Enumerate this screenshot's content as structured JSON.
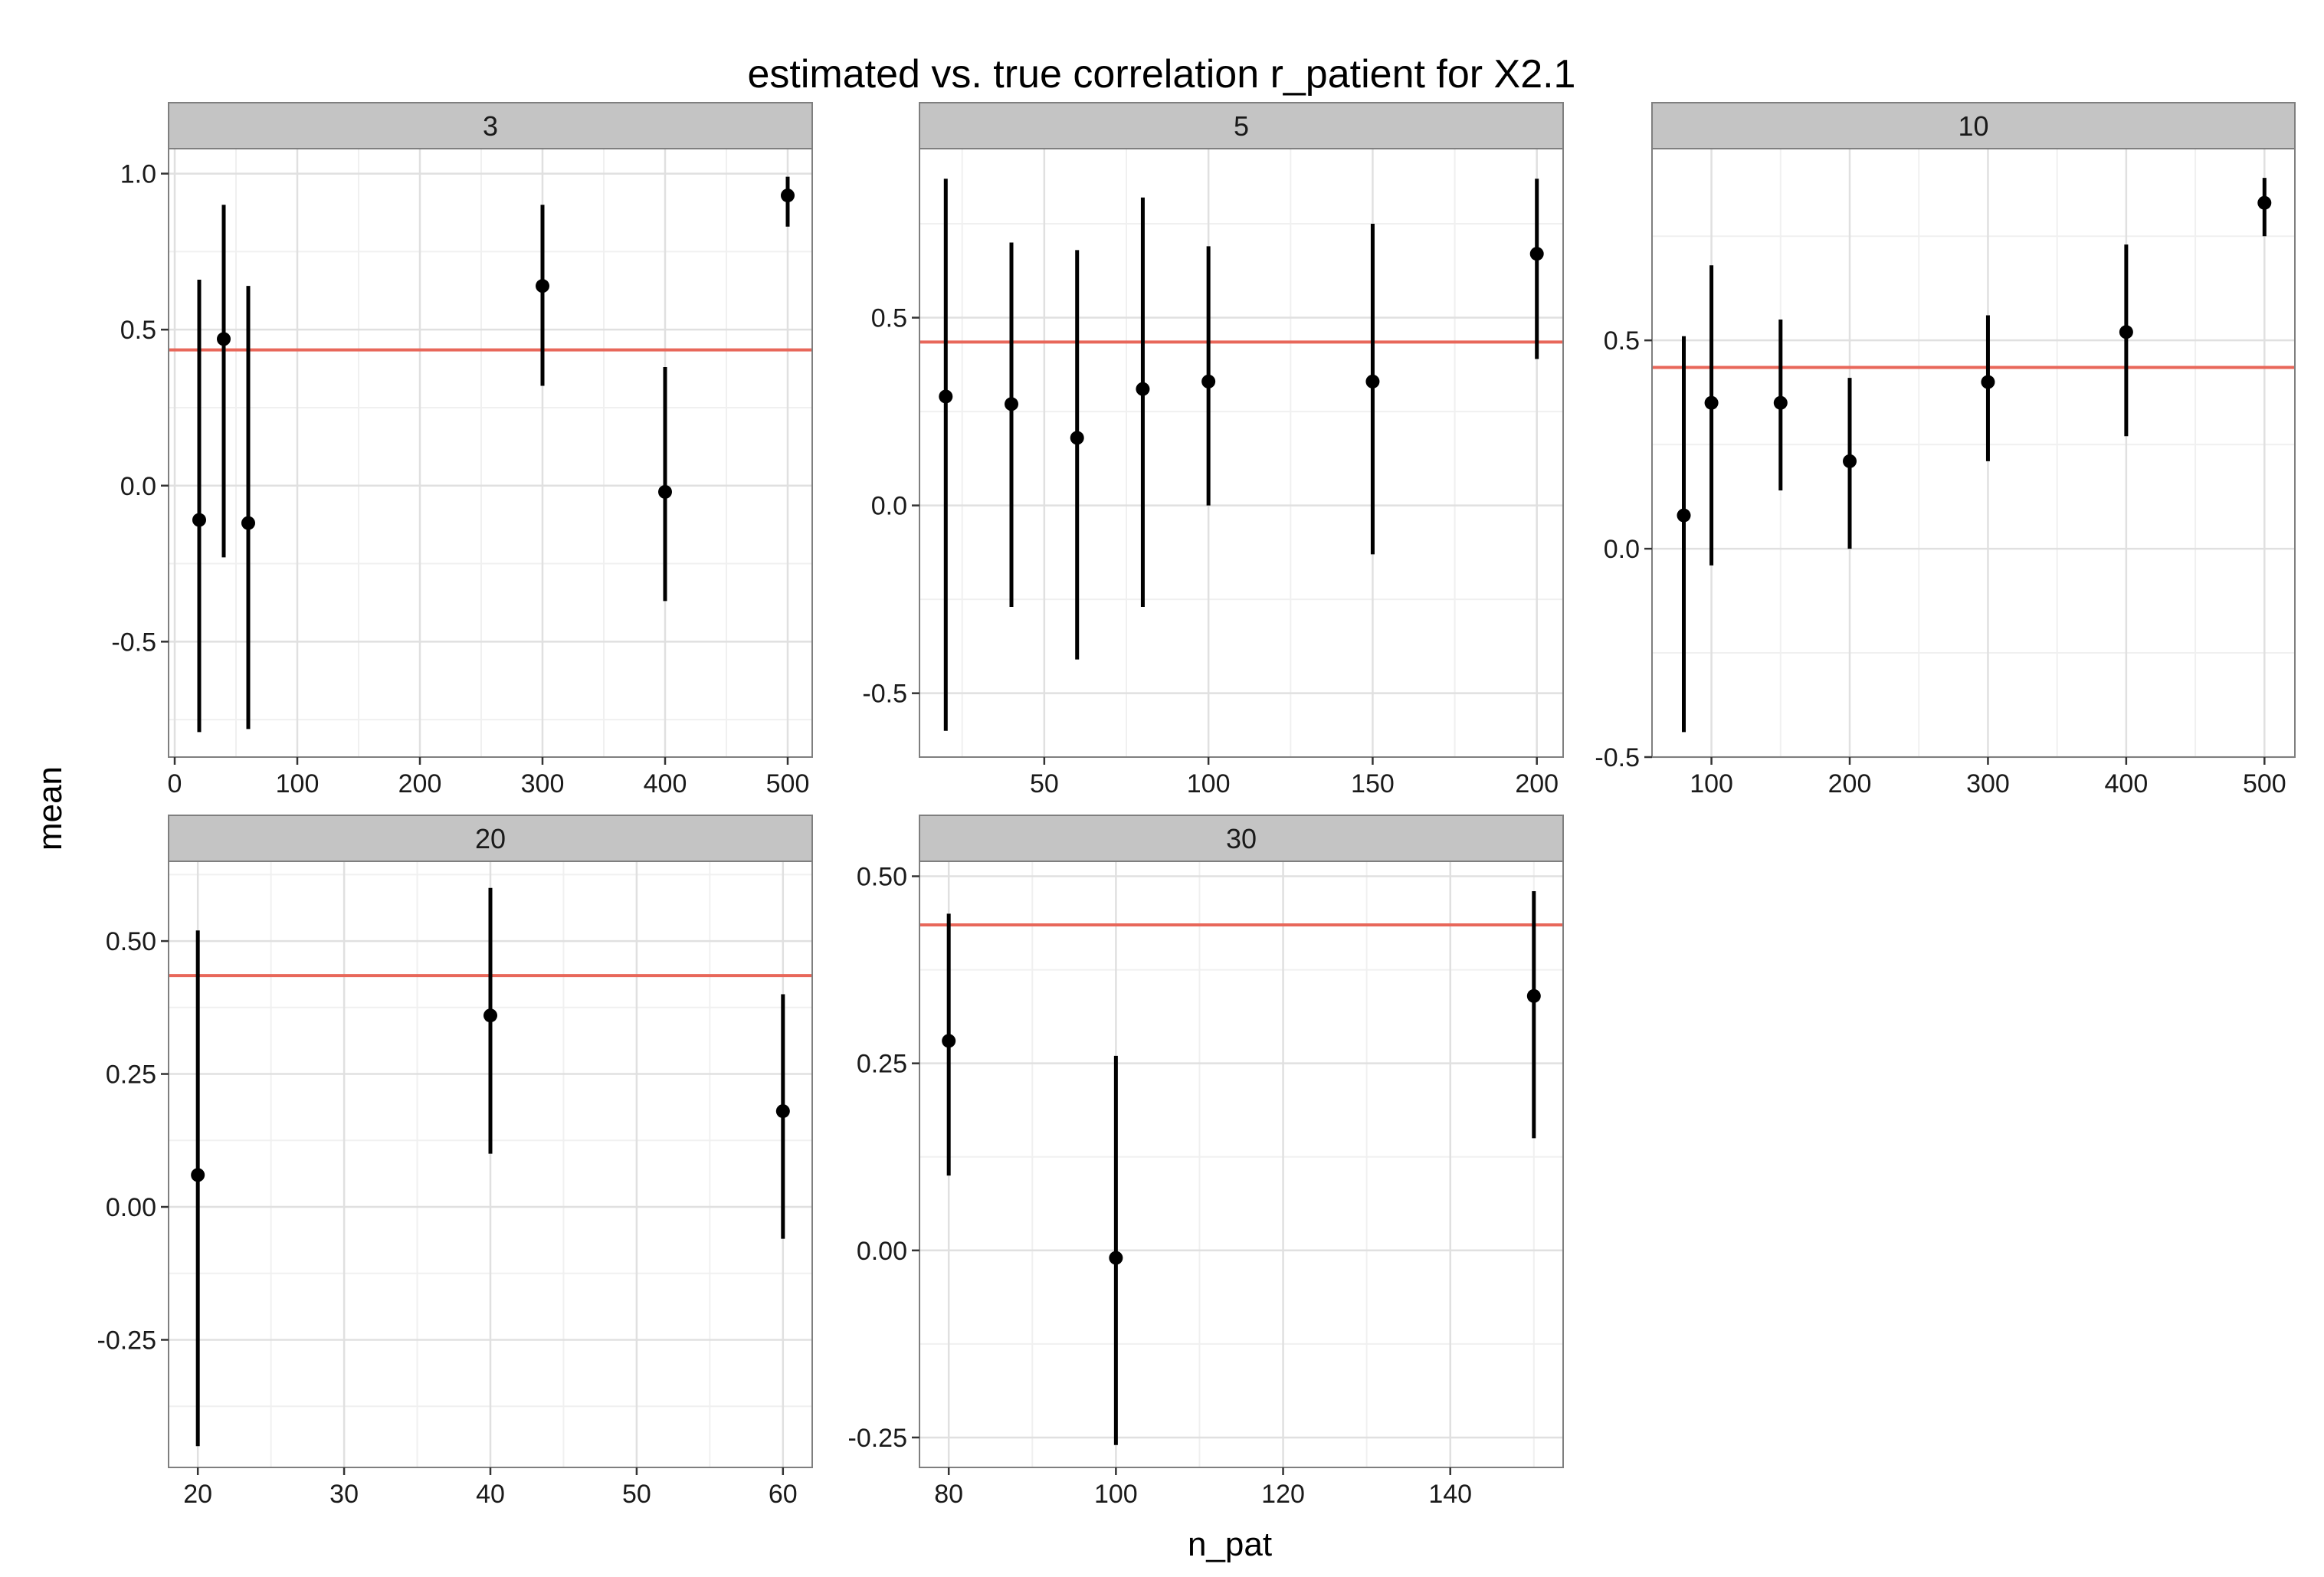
{
  "chart_data": {
    "type": "scatter",
    "title": "estimated vs. true correlation r_patient for X2.1",
    "xlabel": "n_pat",
    "ylabel": "mean",
    "true_value": 0.435,
    "colors": {
      "reference_line": "#E8675A",
      "points": "#000000",
      "strip": "#C4C4C4",
      "grid_major": "#E0E0E0",
      "grid_minor": "#F0F0F0",
      "panel_border": "#7F7F7F"
    },
    "grid": true,
    "panels": [
      {
        "facet": "3",
        "xlim": [
          -5,
          520
        ],
        "ylim": [
          -0.87,
          1.08
        ],
        "xticks": [
          0,
          100,
          200,
          300,
          400,
          500
        ],
        "xtick_labels": [
          "0",
          "100",
          "200",
          "300",
          "400",
          "500"
        ],
        "yticks": [
          -0.5,
          0.0,
          0.5,
          1.0
        ],
        "ytick_labels": [
          "-0.5",
          "0.0",
          "0.5",
          "1.0"
        ],
        "points": [
          {
            "x": 20,
            "mean": -0.11,
            "lo": -0.79,
            "hi": 0.66
          },
          {
            "x": 40,
            "mean": 0.47,
            "lo": -0.23,
            "hi": 0.9
          },
          {
            "x": 60,
            "mean": -0.12,
            "lo": -0.78,
            "hi": 0.64
          },
          {
            "x": 300,
            "mean": 0.64,
            "lo": 0.32,
            "hi": 0.9
          },
          {
            "x": 400,
            "mean": -0.02,
            "lo": -0.37,
            "hi": 0.38
          },
          {
            "x": 500,
            "mean": 0.93,
            "lo": 0.83,
            "hi": 0.99
          }
        ]
      },
      {
        "facet": "5",
        "xlim": [
          12,
          208
        ],
        "ylim": [
          -0.67,
          0.95
        ],
        "xticks": [
          50,
          100,
          150,
          200
        ],
        "xtick_labels": [
          "50",
          "100",
          "150",
          "200"
        ],
        "yticks": [
          -0.5,
          0.0,
          0.5
        ],
        "ytick_labels": [
          "-0.5",
          "0.0",
          "0.5"
        ],
        "points": [
          {
            "x": 20,
            "mean": 0.29,
            "lo": -0.6,
            "hi": 0.87
          },
          {
            "x": 40,
            "mean": 0.27,
            "lo": -0.27,
            "hi": 0.7
          },
          {
            "x": 60,
            "mean": 0.18,
            "lo": -0.41,
            "hi": 0.68
          },
          {
            "x": 80,
            "mean": 0.31,
            "lo": -0.27,
            "hi": 0.82
          },
          {
            "x": 100,
            "mean": 0.33,
            "lo": 0.0,
            "hi": 0.69
          },
          {
            "x": 150,
            "mean": 0.33,
            "lo": -0.13,
            "hi": 0.75
          },
          {
            "x": 200,
            "mean": 0.67,
            "lo": 0.39,
            "hi": 0.87
          }
        ]
      },
      {
        "facet": "10",
        "xlim": [
          57,
          522
        ],
        "ylim": [
          -0.5,
          0.96
        ],
        "xticks": [
          100,
          200,
          300,
          400,
          500
        ],
        "xtick_labels": [
          "100",
          "200",
          "300",
          "400",
          "500"
        ],
        "yticks": [
          -0.5,
          0.0,
          0.5
        ],
        "ytick_labels": [
          "-0.5",
          "0.0",
          "0.5"
        ],
        "points": [
          {
            "x": 80,
            "mean": 0.08,
            "lo": -0.44,
            "hi": 0.51
          },
          {
            "x": 100,
            "mean": 0.35,
            "lo": -0.04,
            "hi": 0.68
          },
          {
            "x": 150,
            "mean": 0.35,
            "lo": 0.14,
            "hi": 0.55
          },
          {
            "x": 200,
            "mean": 0.21,
            "lo": 0.0,
            "hi": 0.41
          },
          {
            "x": 300,
            "mean": 0.4,
            "lo": 0.21,
            "hi": 0.56
          },
          {
            "x": 400,
            "mean": 0.52,
            "lo": 0.27,
            "hi": 0.73
          },
          {
            "x": 500,
            "mean": 0.83,
            "lo": 0.75,
            "hi": 0.89
          }
        ]
      },
      {
        "facet": "20",
        "xlim": [
          18,
          62
        ],
        "ylim": [
          -0.49,
          0.65
        ],
        "xticks": [
          20,
          30,
          40,
          50,
          60
        ],
        "xtick_labels": [
          "20",
          "30",
          "40",
          "50",
          "60"
        ],
        "yticks": [
          -0.25,
          0.0,
          0.25,
          0.5
        ],
        "ytick_labels": [
          "-0.25",
          "0.00",
          "0.25",
          "0.50"
        ],
        "points": [
          {
            "x": 20,
            "mean": 0.06,
            "lo": -0.45,
            "hi": 0.52
          },
          {
            "x": 40,
            "mean": 0.36,
            "lo": 0.1,
            "hi": 0.6
          },
          {
            "x": 60,
            "mean": 0.18,
            "lo": -0.06,
            "hi": 0.4
          }
        ]
      },
      {
        "facet": "30",
        "xlim": [
          76.5,
          153.5
        ],
        "ylim": [
          -0.29,
          0.52
        ],
        "xticks": [
          80,
          100,
          120,
          140
        ],
        "xtick_labels": [
          "80",
          "100",
          "120",
          "140"
        ],
        "yticks": [
          -0.25,
          0.0,
          0.25,
          0.5
        ],
        "ytick_labels": [
          "-0.25",
          "0.00",
          "0.25",
          "0.50"
        ],
        "points": [
          {
            "x": 80,
            "mean": 0.28,
            "lo": 0.1,
            "hi": 0.45
          },
          {
            "x": 100,
            "mean": -0.01,
            "lo": -0.26,
            "hi": 0.26
          },
          {
            "x": 150,
            "mean": 0.34,
            "lo": 0.15,
            "hi": 0.48
          }
        ]
      }
    ]
  }
}
